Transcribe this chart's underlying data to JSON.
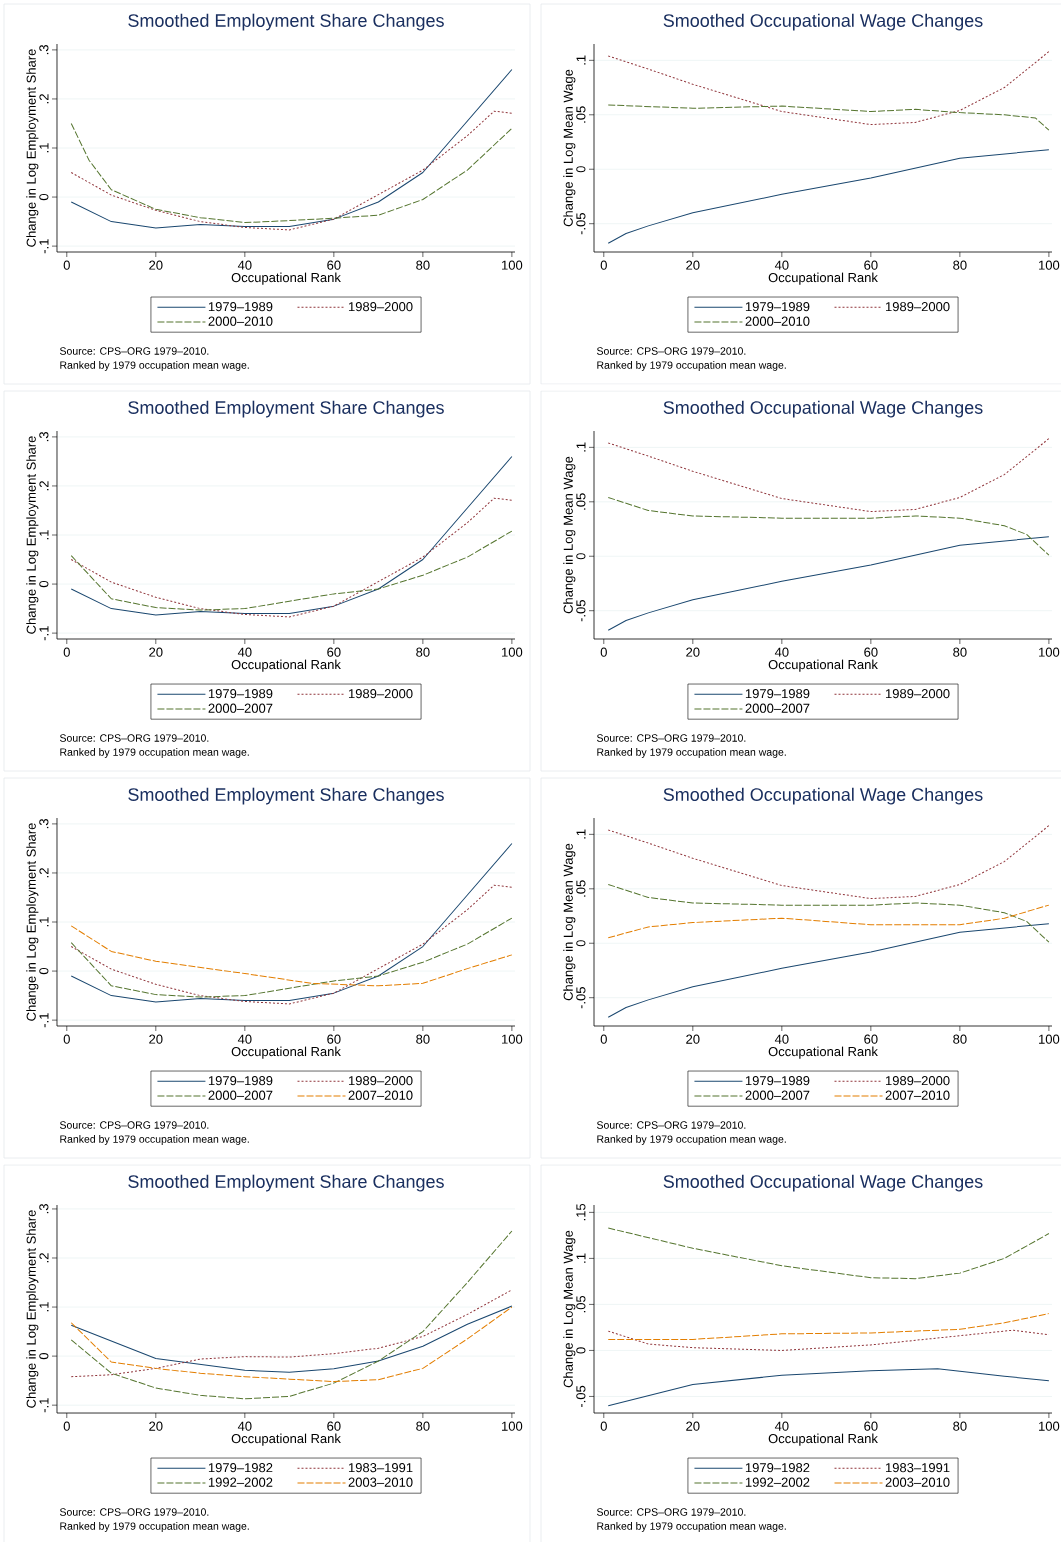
{
  "chart_data": [
    {
      "type": "line",
      "title": "Smoothed Employment Share Changes",
      "xlabel": "Occupational Rank",
      "ylabel": "Change in Log Employment Share",
      "xlim": [
        -2.2,
        100.7
      ],
      "ylim": [
        -0.112,
        0.312
      ],
      "xticks": [
        0,
        20,
        40,
        60,
        80,
        100
      ],
      "yticks": [
        {
          "value": -0.1,
          "label": "-.1"
        },
        0,
        {
          "value": 0.1,
          "label": ".1"
        },
        {
          "value": 0.2,
          "label": ".2"
        },
        {
          "value": 0.3,
          "label": ".3"
        }
      ],
      "grid": "y",
      "legend": "bottom",
      "series": [
        {
          "name": "1979–1989",
          "color": "#1a476f",
          "line_style": "solid",
          "x": [
            1,
            10,
            20,
            30,
            40,
            50,
            60,
            70,
            80,
            90,
            100
          ],
          "values": [
            -0.01,
            -0.05,
            -0.063,
            -0.056,
            -0.06,
            -0.06,
            -0.045,
            -0.01,
            0.05,
            0.155,
            0.26
          ]
        },
        {
          "name": "1989–2000",
          "color": "#90353b",
          "line_style": "dotted",
          "x": [
            1,
            10,
            20,
            30,
            40,
            50,
            60,
            70,
            80,
            90,
            96,
            100
          ],
          "values": [
            0.05,
            0.004,
            -0.027,
            -0.05,
            -0.062,
            -0.067,
            -0.045,
            0.005,
            0.055,
            0.125,
            0.175,
            0.171
          ]
        },
        {
          "name": "2000–2010",
          "color": "#55752f",
          "line_style": "dashed",
          "x": [
            1,
            5,
            10,
            20,
            30,
            40,
            50,
            60,
            70,
            80,
            90,
            100
          ],
          "values": [
            0.15,
            0.075,
            0.015,
            -0.025,
            -0.042,
            -0.052,
            -0.048,
            -0.043,
            -0.037,
            -0.005,
            0.055,
            0.14
          ]
        }
      ],
      "annotations": [
        "Source: CPS–ORG 1979–2010.",
        "Ranked by 1979 occupation mean wage."
      ]
    },
    {
      "type": "line",
      "title": "Smoothed Occupational Wage Changes",
      "xlabel": "Occupational Rank",
      "ylabel": "Change in Log Mean Wage",
      "xlim": [
        -2.2,
        100.7
      ],
      "ylim": [
        -0.076,
        0.115
      ],
      "xticks": [
        0,
        20,
        40,
        60,
        80,
        100
      ],
      "yticks": [
        {
          "value": -0.05,
          "label": "-.05"
        },
        0,
        {
          "value": 0.05,
          "label": ".05"
        },
        {
          "value": 0.1,
          "label": ".1"
        }
      ],
      "grid": "y",
      "legend": "bottom",
      "series": [
        {
          "name": "1979–1989",
          "color": "#1a476f",
          "line_style": "solid",
          "x": [
            1,
            5,
            10,
            20,
            40,
            60,
            80,
            100
          ],
          "values": [
            -0.068,
            -0.059,
            -0.052,
            -0.04,
            -0.023,
            -0.008,
            0.01,
            0.018
          ]
        },
        {
          "name": "1989–2000",
          "color": "#90353b",
          "line_style": "dotted",
          "x": [
            1,
            10,
            20,
            40,
            60,
            70,
            80,
            90,
            100
          ],
          "values": [
            0.104,
            0.092,
            0.078,
            0.053,
            0.041,
            0.043,
            0.054,
            0.075,
            0.108
          ]
        },
        {
          "name": "2000–2010",
          "color": "#55752f",
          "line_style": "dashed",
          "x": [
            1,
            20,
            40,
            60,
            70,
            80,
            90,
            97,
            100
          ],
          "values": [
            0.059,
            0.056,
            0.058,
            0.053,
            0.055,
            0.052,
            0.05,
            0.047,
            0.036
          ]
        }
      ],
      "annotations": [
        "Source: CPS–ORG 1979–2010.",
        "Ranked by 1979 occupation mean wage."
      ]
    },
    {
      "type": "line",
      "title": "Smoothed Employment Share Changes",
      "xlabel": "Occupational Rank",
      "ylabel": "Change in Log Employment Share",
      "xlim": [
        -2.2,
        100.7
      ],
      "ylim": [
        -0.112,
        0.312
      ],
      "xticks": [
        0,
        20,
        40,
        60,
        80,
        100
      ],
      "yticks": [
        {
          "value": -0.1,
          "label": "-.1"
        },
        0,
        {
          "value": 0.1,
          "label": ".1"
        },
        {
          "value": 0.2,
          "label": ".2"
        },
        {
          "value": 0.3,
          "label": ".3"
        }
      ],
      "grid": "y",
      "legend": "bottom",
      "series": [
        {
          "name": "1979–1989",
          "color": "#1a476f",
          "line_style": "solid",
          "x": [
            1,
            10,
            20,
            30,
            40,
            50,
            60,
            70,
            80,
            90,
            100
          ],
          "values": [
            -0.01,
            -0.05,
            -0.063,
            -0.056,
            -0.06,
            -0.06,
            -0.045,
            -0.01,
            0.05,
            0.155,
            0.26
          ]
        },
        {
          "name": "1989–2000",
          "color": "#90353b",
          "line_style": "dotted",
          "x": [
            1,
            10,
            20,
            30,
            40,
            50,
            60,
            70,
            80,
            90,
            96,
            100
          ],
          "values": [
            0.05,
            0.004,
            -0.027,
            -0.05,
            -0.062,
            -0.067,
            -0.045,
            0.005,
            0.055,
            0.125,
            0.175,
            0.171
          ]
        },
        {
          "name": "2000–2007",
          "color": "#55752f",
          "line_style": "dashed",
          "x": [
            1,
            10,
            20,
            30,
            40,
            50,
            60,
            70,
            80,
            90,
            100
          ],
          "values": [
            0.058,
            -0.03,
            -0.048,
            -0.053,
            -0.05,
            -0.035,
            -0.02,
            -0.01,
            0.018,
            0.055,
            0.108
          ]
        }
      ],
      "annotations": [
        "Source: CPS–ORG 1979–2010.",
        "Ranked by 1979 occupation mean wage."
      ]
    },
    {
      "type": "line",
      "title": "Smoothed Occupational Wage Changes",
      "xlabel": "Occupational Rank",
      "ylabel": "Change in Log Mean Wage",
      "xlim": [
        -2.2,
        100.7
      ],
      "ylim": [
        -0.076,
        0.115
      ],
      "xticks": [
        0,
        20,
        40,
        60,
        80,
        100
      ],
      "yticks": [
        {
          "value": -0.05,
          "label": "-.05"
        },
        0,
        {
          "value": 0.05,
          "label": ".05"
        },
        {
          "value": 0.1,
          "label": ".1"
        }
      ],
      "grid": "y",
      "legend": "bottom",
      "series": [
        {
          "name": "1979–1989",
          "color": "#1a476f",
          "line_style": "solid",
          "x": [
            1,
            5,
            10,
            20,
            40,
            60,
            80,
            100
          ],
          "values": [
            -0.068,
            -0.059,
            -0.052,
            -0.04,
            -0.023,
            -0.008,
            0.01,
            0.018
          ]
        },
        {
          "name": "1989–2000",
          "color": "#90353b",
          "line_style": "dotted",
          "x": [
            1,
            10,
            20,
            40,
            60,
            70,
            80,
            90,
            100
          ],
          "values": [
            0.104,
            0.092,
            0.078,
            0.053,
            0.041,
            0.043,
            0.054,
            0.075,
            0.108
          ]
        },
        {
          "name": "2000–2007",
          "color": "#55752f",
          "line_style": "dashed",
          "x": [
            1,
            10,
            20,
            40,
            60,
            70,
            80,
            90,
            95,
            100
          ],
          "values": [
            0.054,
            0.042,
            0.037,
            0.035,
            0.035,
            0.037,
            0.035,
            0.028,
            0.02,
            0.001
          ]
        }
      ],
      "annotations": [
        "Source: CPS–ORG 1979–2010.",
        "Ranked by 1979 occupation mean wage."
      ]
    },
    {
      "type": "line",
      "title": "Smoothed Employment Share Changes",
      "xlabel": "Occupational Rank",
      "ylabel": "Change in Log Employment Share",
      "xlim": [
        -2.2,
        100.7
      ],
      "ylim": [
        -0.112,
        0.312
      ],
      "xticks": [
        0,
        20,
        40,
        60,
        80,
        100
      ],
      "yticks": [
        {
          "value": -0.1,
          "label": "-.1"
        },
        0,
        {
          "value": 0.1,
          "label": ".1"
        },
        {
          "value": 0.2,
          "label": ".2"
        },
        {
          "value": 0.3,
          "label": ".3"
        }
      ],
      "grid": "y",
      "legend": "bottom",
      "series": [
        {
          "name": "1979–1989",
          "color": "#1a476f",
          "line_style": "solid",
          "x": [
            1,
            10,
            20,
            30,
            40,
            50,
            60,
            70,
            80,
            90,
            100
          ],
          "values": [
            -0.01,
            -0.05,
            -0.063,
            -0.056,
            -0.06,
            -0.06,
            -0.045,
            -0.01,
            0.05,
            0.155,
            0.26
          ]
        },
        {
          "name": "1989–2000",
          "color": "#90353b",
          "line_style": "dotted",
          "x": [
            1,
            10,
            20,
            30,
            40,
            50,
            60,
            70,
            80,
            90,
            96,
            100
          ],
          "values": [
            0.05,
            0.004,
            -0.027,
            -0.05,
            -0.062,
            -0.067,
            -0.045,
            0.005,
            0.055,
            0.125,
            0.175,
            0.171
          ]
        },
        {
          "name": "2000–2007",
          "color": "#55752f",
          "line_style": "dashed",
          "x": [
            1,
            10,
            20,
            30,
            40,
            50,
            60,
            70,
            80,
            90,
            100
          ],
          "values": [
            0.058,
            -0.03,
            -0.048,
            -0.053,
            -0.05,
            -0.035,
            -0.02,
            -0.01,
            0.018,
            0.055,
            0.108
          ]
        },
        {
          "name": "2007–2010",
          "color": "#e37e00",
          "line_style": "dashed",
          "x": [
            1,
            10,
            20,
            40,
            55,
            70,
            80,
            90,
            100
          ],
          "values": [
            0.092,
            0.04,
            0.02,
            -0.005,
            -0.025,
            -0.03,
            -0.025,
            0.005,
            0.033
          ]
        }
      ],
      "annotations": [
        "Source: CPS–ORG 1979–2010.",
        "Ranked by 1979 occupation mean wage."
      ]
    },
    {
      "type": "line",
      "title": "Smoothed Occupational Wage Changes",
      "xlabel": "Occupational Rank",
      "ylabel": "Change in Log Mean Wage",
      "xlim": [
        -2.2,
        100.7
      ],
      "ylim": [
        -0.076,
        0.115
      ],
      "xticks": [
        0,
        20,
        40,
        60,
        80,
        100
      ],
      "yticks": [
        {
          "value": -0.05,
          "label": "-.05"
        },
        0,
        {
          "value": 0.05,
          "label": ".05"
        },
        {
          "value": 0.1,
          "label": ".1"
        }
      ],
      "grid": "y",
      "legend": "bottom",
      "series": [
        {
          "name": "1979–1989",
          "color": "#1a476f",
          "line_style": "solid",
          "x": [
            1,
            5,
            10,
            20,
            40,
            60,
            80,
            100
          ],
          "values": [
            -0.068,
            -0.059,
            -0.052,
            -0.04,
            -0.023,
            -0.008,
            0.01,
            0.018
          ]
        },
        {
          "name": "1989–2000",
          "color": "#90353b",
          "line_style": "dotted",
          "x": [
            1,
            10,
            20,
            40,
            60,
            70,
            80,
            90,
            100
          ],
          "values": [
            0.104,
            0.092,
            0.078,
            0.053,
            0.041,
            0.043,
            0.054,
            0.075,
            0.108
          ]
        },
        {
          "name": "2000–2007",
          "color": "#55752f",
          "line_style": "dashed",
          "x": [
            1,
            10,
            20,
            40,
            60,
            70,
            80,
            90,
            95,
            100
          ],
          "values": [
            0.054,
            0.042,
            0.037,
            0.035,
            0.035,
            0.037,
            0.035,
            0.028,
            0.02,
            0.001
          ]
        },
        {
          "name": "2007–2010",
          "color": "#e37e00",
          "line_style": "dashed",
          "x": [
            1,
            10,
            20,
            40,
            60,
            80,
            90,
            100
          ],
          "values": [
            0.005,
            0.015,
            0.019,
            0.023,
            0.017,
            0.017,
            0.023,
            0.035
          ]
        }
      ],
      "annotations": [
        "Source: CPS–ORG 1979–2010.",
        "Ranked by 1979 occupation mean wage."
      ]
    },
    {
      "type": "line",
      "title": "Smoothed Employment Share Changes",
      "xlabel": "Occupational Rank",
      "ylabel": "Change in Log Employment Share",
      "xlim": [
        -2.2,
        100.7
      ],
      "ylim": [
        -0.116,
        0.308
      ],
      "xticks": [
        0,
        20,
        40,
        60,
        80,
        100
      ],
      "yticks": [
        {
          "value": -0.1,
          "label": "-.1"
        },
        0,
        {
          "value": 0.1,
          "label": ".1"
        },
        {
          "value": 0.2,
          "label": ".2"
        },
        {
          "value": 0.3,
          "label": ".3"
        }
      ],
      "grid": "y",
      "legend": "bottom",
      "series": [
        {
          "name": "1979–1982",
          "color": "#1a476f",
          "line_style": "solid",
          "x": [
            1,
            20,
            40,
            50,
            60,
            70,
            80,
            90,
            100
          ],
          "values": [
            0.063,
            -0.005,
            -0.029,
            -0.033,
            -0.026,
            -0.01,
            0.02,
            0.065,
            0.102
          ]
        },
        {
          "name": "1983–1991",
          "color": "#90353b",
          "line_style": "dotted",
          "x": [
            1,
            10,
            20,
            30,
            40,
            50,
            60,
            70,
            80,
            90,
            100
          ],
          "values": [
            -0.042,
            -0.038,
            -0.025,
            -0.006,
            -0.001,
            -0.002,
            0.005,
            0.016,
            0.04,
            0.085,
            0.135
          ]
        },
        {
          "name": "1992–2002",
          "color": "#55752f",
          "line_style": "dashed",
          "x": [
            1,
            10,
            20,
            30,
            40,
            50,
            60,
            70,
            80,
            90,
            100
          ],
          "values": [
            0.033,
            -0.035,
            -0.065,
            -0.08,
            -0.087,
            -0.082,
            -0.055,
            -0.01,
            0.05,
            0.15,
            0.255
          ]
        },
        {
          "name": "2003–2010",
          "color": "#e37e00",
          "line_style": "dashed",
          "x": [
            1,
            10,
            20,
            30,
            40,
            50,
            60,
            70,
            80,
            90,
            100
          ],
          "values": [
            0.068,
            -0.012,
            -0.025,
            -0.035,
            -0.042,
            -0.047,
            -0.052,
            -0.048,
            -0.025,
            0.035,
            0.1
          ]
        }
      ],
      "annotations": [
        "Source: CPS–ORG 1979–2010.",
        "Ranked by 1979 occupation mean wage."
      ]
    },
    {
      "type": "line",
      "title": "Smoothed Occupational Wage Changes",
      "xlabel": "Occupational Rank",
      "ylabel": "Change in Log Mean Wage",
      "xlim": [
        -2.2,
        100.7
      ],
      "ylim": [
        -0.068,
        0.158
      ],
      "xticks": [
        0,
        20,
        40,
        60,
        80,
        100
      ],
      "yticks": [
        {
          "value": -0.05,
          "label": "-.05"
        },
        0,
        {
          "value": 0.05,
          "label": ".05"
        },
        {
          "value": 0.1,
          "label": ".1"
        },
        {
          "value": 0.15,
          "label": ".15"
        }
      ],
      "grid": "y",
      "legend": "bottom",
      "series": [
        {
          "name": "1979–1982",
          "color": "#1a476f",
          "line_style": "solid",
          "x": [
            1,
            20,
            40,
            60,
            75,
            90,
            100
          ],
          "values": [
            -0.06,
            -0.037,
            -0.027,
            -0.022,
            -0.02,
            -0.028,
            -0.033
          ]
        },
        {
          "name": "1983–1991",
          "color": "#90353b",
          "line_style": "dotted",
          "x": [
            1,
            10,
            20,
            40,
            60,
            80,
            92,
            100
          ],
          "values": [
            0.021,
            0.007,
            0.003,
            0.0,
            0.006,
            0.016,
            0.022,
            0.017
          ]
        },
        {
          "name": "1992–2002",
          "color": "#55752f",
          "line_style": "dashed",
          "x": [
            1,
            20,
            40,
            60,
            70,
            80,
            90,
            100
          ],
          "values": [
            0.133,
            0.111,
            0.092,
            0.079,
            0.078,
            0.084,
            0.1,
            0.127
          ]
        },
        {
          "name": "2003–2010",
          "color": "#e37e00",
          "line_style": "dashed",
          "x": [
            1,
            20,
            40,
            60,
            80,
            90,
            100
          ],
          "values": [
            0.012,
            0.012,
            0.018,
            0.019,
            0.023,
            0.03,
            0.04
          ]
        }
      ],
      "annotations": [
        "Source: CPS–ORG 1979–2010.",
        "Ranked by 1979 occupation mean wage."
      ]
    }
  ]
}
